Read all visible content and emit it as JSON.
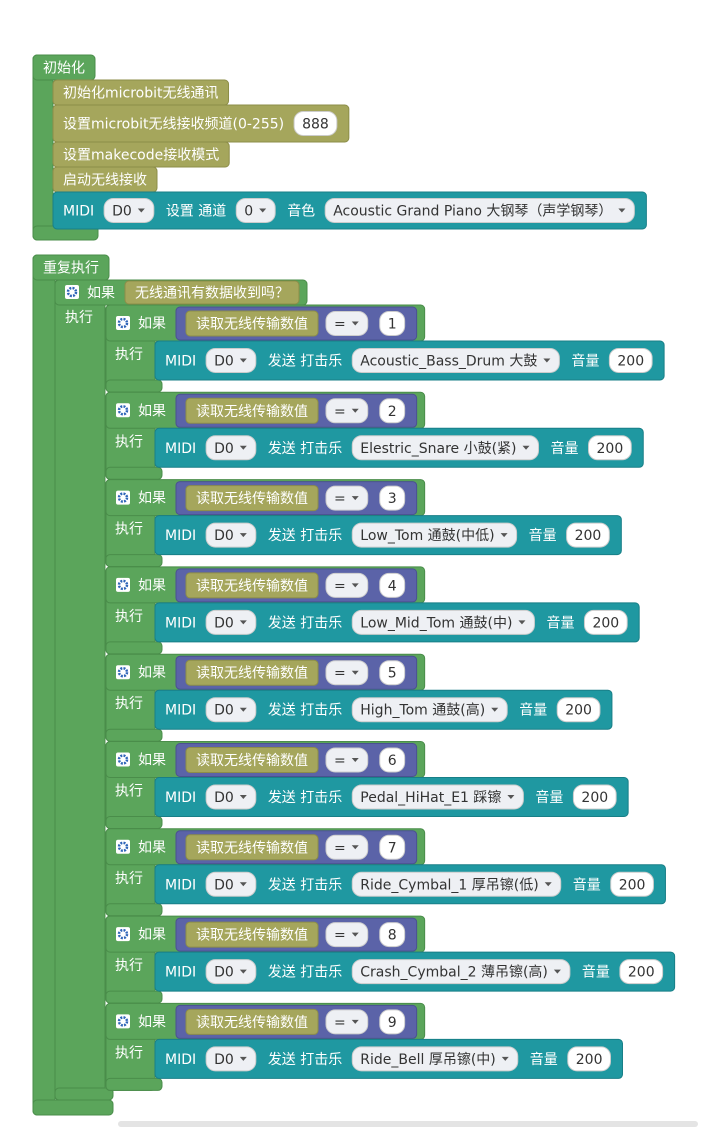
{
  "init": {
    "label": "初始化",
    "statements": [
      {
        "text": "初始化microbit无线通讯"
      },
      {
        "text": "设置microbit无线接收频道(0-255)",
        "value": 888
      },
      {
        "text": "设置makecode接收模式"
      },
      {
        "text": "启动无线接收"
      }
    ],
    "midi": {
      "label": "MIDI",
      "pin": "D0",
      "action": "设置 通道",
      "channel": 0,
      "instrument_label": "音色",
      "instrument": "Acoustic Grand Piano 大钢琴（声学钢琴）"
    }
  },
  "forever": {
    "label": "重复执行",
    "if": {
      "if_label": "如果",
      "condition": "无线通讯有数据收到吗？",
      "do_label": "执行",
      "cases": [
        {
          "if_label": "如果",
          "read": "读取无线传输数值",
          "op": "=",
          "value": 1,
          "do_label": "执行",
          "midi": "MIDI",
          "pin": "D0",
          "action": "发送 打击乐",
          "drum": "Acoustic_Bass_Drum 大鼓",
          "volume_label": "音量",
          "volume": 200
        },
        {
          "if_label": "如果",
          "read": "读取无线传输数值",
          "op": "=",
          "value": 2,
          "do_label": "执行",
          "midi": "MIDI",
          "pin": "D0",
          "action": "发送 打击乐",
          "drum": "Elestric_Snare 小鼓(紧)",
          "volume_label": "音量",
          "volume": 200
        },
        {
          "if_label": "如果",
          "read": "读取无线传输数值",
          "op": "=",
          "value": 3,
          "do_label": "执行",
          "midi": "MIDI",
          "pin": "D0",
          "action": "发送 打击乐",
          "drum": "Low_Tom 通鼓(中低)",
          "volume_label": "音量",
          "volume": 200
        },
        {
          "if_label": "如果",
          "read": "读取无线传输数值",
          "op": "=",
          "value": 4,
          "do_label": "执行",
          "midi": "MIDI",
          "pin": "D0",
          "action": "发送 打击乐",
          "drum": "Low_Mid_Tom 通鼓(中)",
          "volume_label": "音量",
          "volume": 200
        },
        {
          "if_label": "如果",
          "read": "读取无线传输数值",
          "op": "=",
          "value": 5,
          "do_label": "执行",
          "midi": "MIDI",
          "pin": "D0",
          "action": "发送 打击乐",
          "drum": "High_Tom 通鼓(高)",
          "volume_label": "音量",
          "volume": 200
        },
        {
          "if_label": "如果",
          "read": "读取无线传输数值",
          "op": "=",
          "value": 6,
          "do_label": "执行",
          "midi": "MIDI",
          "pin": "D0",
          "action": "发送 打击乐",
          "drum": "Pedal_HiHat_E1 踩镲",
          "volume_label": "音量",
          "volume": 200
        },
        {
          "if_label": "如果",
          "read": "读取无线传输数值",
          "op": "=",
          "value": 7,
          "do_label": "执行",
          "midi": "MIDI",
          "pin": "D0",
          "action": "发送 打击乐",
          "drum": "Ride_Cymbal_1 厚吊镲(低)",
          "volume_label": "音量",
          "volume": 200
        },
        {
          "if_label": "如果",
          "read": "读取无线传输数值",
          "op": "=",
          "value": 8,
          "do_label": "执行",
          "midi": "MIDI",
          "pin": "D0",
          "action": "发送 打击乐",
          "drum": "Crash_Cymbal_2 薄吊镲(高)",
          "volume_label": "音量",
          "volume": 200
        },
        {
          "if_label": "如果",
          "read": "读取无线传输数值",
          "op": "=",
          "value": 9,
          "do_label": "执行",
          "midi": "MIDI",
          "pin": "D0",
          "action": "发送 打击乐",
          "drum": "Ride_Bell 厚吊镲(中)",
          "volume_label": "音量",
          "volume": 200
        }
      ]
    }
  }
}
